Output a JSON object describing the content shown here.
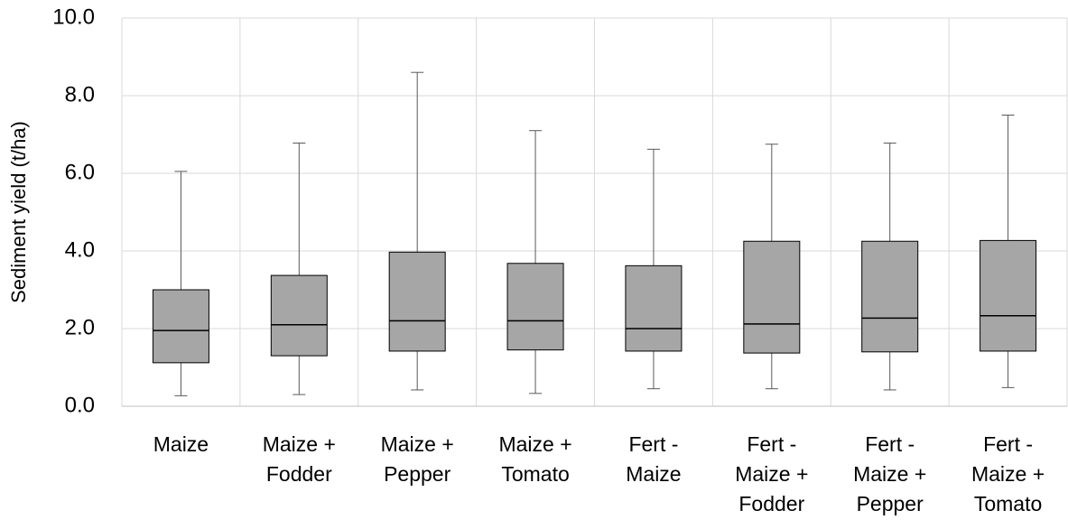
{
  "chart_data": {
    "type": "box",
    "y_label": "Sediment yield (t/ha)",
    "categories": [
      "Maize",
      "Maize + Fodder",
      "Maize + Pepper",
      "Maize + Tomato",
      "Fert - Maize",
      "Fert - Maize + Fodder",
      "Fert - Maize + Pepper",
      "Fert - Maize + Tomato"
    ],
    "boxes": [
      {
        "min": 0.27,
        "q1": 1.12,
        "median": 1.95,
        "q3": 3.0,
        "max": 6.05
      },
      {
        "min": 0.3,
        "q1": 1.3,
        "median": 2.1,
        "q3": 3.37,
        "max": 6.78
      },
      {
        "min": 0.42,
        "q1": 1.42,
        "median": 2.2,
        "q3": 3.97,
        "max": 8.6
      },
      {
        "min": 0.33,
        "q1": 1.45,
        "median": 2.2,
        "q3": 3.68,
        "max": 7.1
      },
      {
        "min": 0.45,
        "q1": 1.42,
        "median": 2.0,
        "q3": 3.62,
        "max": 6.62
      },
      {
        "min": 0.45,
        "q1": 1.37,
        "median": 2.12,
        "q3": 4.25,
        "max": 6.75
      },
      {
        "min": 0.42,
        "q1": 1.4,
        "median": 2.27,
        "q3": 4.25,
        "max": 6.78
      },
      {
        "min": 0.48,
        "q1": 1.42,
        "median": 2.33,
        "q3": 4.27,
        "max": 7.5
      }
    ],
    "color": "#a6a6a6",
    "ylim": [
      0,
      10
    ],
    "yticks": [
      {
        "value": 0,
        "label": "0.0"
      },
      {
        "value": 2,
        "label": "2.0"
      },
      {
        "value": 4,
        "label": "4.0"
      },
      {
        "value": 6,
        "label": "6.0"
      },
      {
        "value": 8,
        "label": "8.0"
      },
      {
        "value": 10,
        "label": "10.0"
      }
    ],
    "grid": true
  }
}
